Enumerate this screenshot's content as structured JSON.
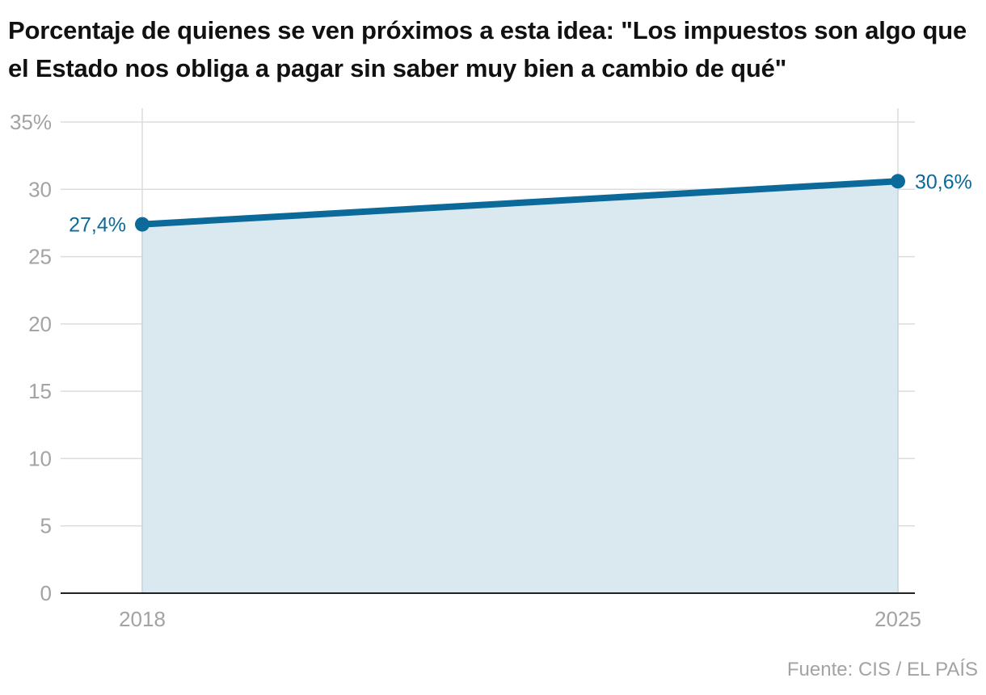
{
  "chart_data": {
    "type": "area",
    "title": "Porcentaje de quienes se ven próximos a esta idea: \"Los impuestos son algo que el Estado nos obliga a pagar sin saber muy bien a cambio de qué\"",
    "x": [
      "2018",
      "2025"
    ],
    "series": [
      {
        "values": [
          27.4,
          30.6
        ],
        "labels": [
          "27,4%",
          "30,6%"
        ]
      }
    ],
    "ylim": [
      0,
      35
    ],
    "y_ticks": [
      0,
      5,
      10,
      15,
      20,
      25,
      30,
      35
    ],
    "y_tick_labels": [
      "0",
      "5",
      "10",
      "15",
      "20",
      "25",
      "30",
      "35%"
    ],
    "grid": true,
    "source": "Fuente: CIS / EL PAÍS",
    "colors": {
      "line": "#0b6a9a",
      "fill": "#dae8f0",
      "grid": "#dcdcdc",
      "axis": "#222222",
      "tick_text": "#a3a3a3"
    }
  }
}
